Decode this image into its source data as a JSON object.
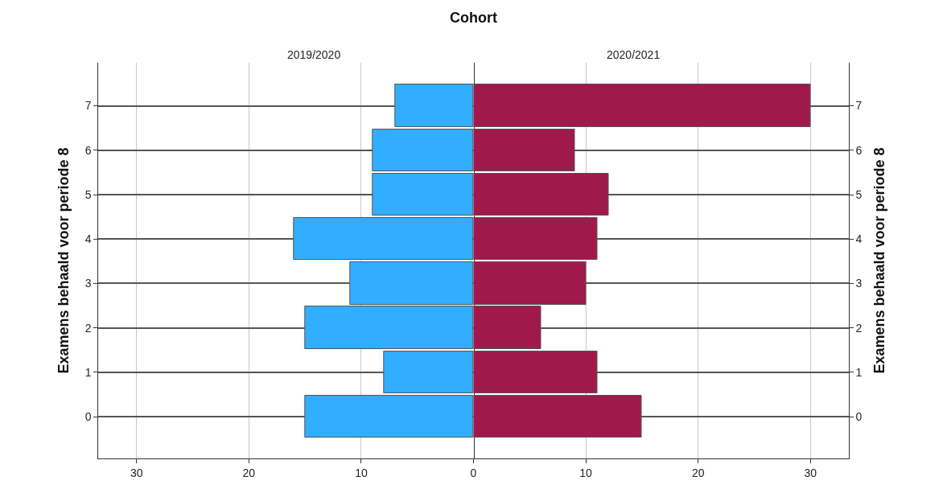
{
  "chart_data": [
    {
      "type": "bar",
      "orientation": "horizontal",
      "title": "2019/2020",
      "annotations": [
        "Cohort"
      ],
      "categories": [
        "7",
        "6",
        "5",
        "4",
        "3",
        "2",
        "1",
        "0"
      ],
      "values": [
        7,
        9,
        9,
        16,
        11,
        15,
        8,
        15
      ],
      "color": "#33adff",
      "xlim": [
        33.4,
        0
      ],
      "xticks": [
        30,
        20,
        10,
        0
      ],
      "ylabel": "Examens behaald voor periode 8",
      "grid": true
    },
    {
      "type": "bar",
      "orientation": "horizontal",
      "title": "2020/2021",
      "categories": [
        "7",
        "6",
        "5",
        "4",
        "3",
        "2",
        "1",
        "0"
      ],
      "values": [
        30,
        9,
        12,
        11,
        10,
        6,
        11,
        15
      ],
      "color": "#a0194b",
      "xlim": [
        0,
        33.4
      ],
      "xticks": [
        {
          "value": 0,
          "label": null
        },
        10,
        20,
        30
      ],
      "ylabel": "Examens behaald voor periode 8",
      "grid": true
    }
  ]
}
